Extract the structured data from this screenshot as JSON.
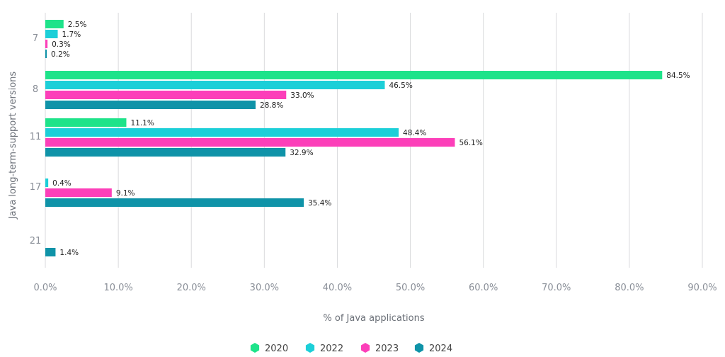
{
  "chart_data": {
    "type": "bar",
    "orientation": "horizontal",
    "categories": [
      "7",
      "8",
      "11",
      "17",
      "21"
    ],
    "series": [
      {
        "name": "2020",
        "color": "#1ee38a",
        "values": [
          2.5,
          84.5,
          11.1,
          null,
          null
        ],
        "labels": [
          "2.5%",
          "84.5%",
          "11.1%",
          "",
          ""
        ]
      },
      {
        "name": "2022",
        "color": "#1ccfd8",
        "values": [
          1.7,
          46.5,
          48.4,
          0.4,
          null
        ],
        "labels": [
          "1.7%",
          "46.5%",
          "48.4%",
          "0.4%",
          ""
        ]
      },
      {
        "name": "2023",
        "color": "#fc3fb9",
        "values": [
          0.3,
          33.0,
          56.1,
          9.1,
          null
        ],
        "labels": [
          "0.3%",
          "33.0%",
          "56.1%",
          "9.1%",
          ""
        ]
      },
      {
        "name": "2024",
        "color": "#0f93a8",
        "values": [
          0.2,
          28.8,
          32.9,
          35.4,
          1.4
        ],
        "labels": [
          "0.2%",
          "28.8%",
          "32.9%",
          "35.4%",
          "1.4%"
        ]
      }
    ],
    "xlabel": "% of Java applications",
    "ylabel": "Java long-term-support versions",
    "xlim": [
      0,
      90
    ],
    "xticks": [
      0,
      10,
      20,
      30,
      40,
      50,
      60,
      70,
      80,
      90
    ],
    "xtick_labels": [
      "0.0%",
      "10.0%",
      "20.0%",
      "30.0%",
      "40.0%",
      "50.0%",
      "60.0%",
      "70.0%",
      "80.0%",
      "90.0%"
    ],
    "grid": true,
    "legend_position": "bottom-center",
    "legend_marker": "hexagon"
  }
}
